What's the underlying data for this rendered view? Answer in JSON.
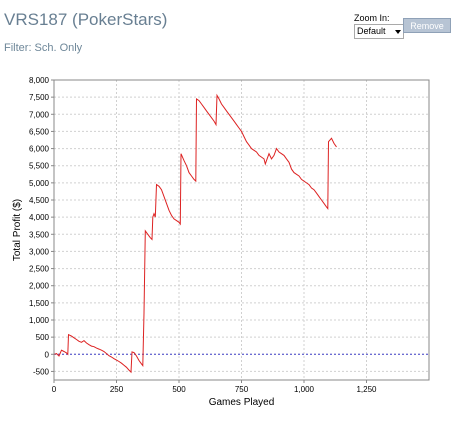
{
  "header": {
    "title": "VRS187 (PokerStars)",
    "filter_label": "Filter:",
    "filter_value": "Sch. Only"
  },
  "zoom": {
    "label": "Zoom In:",
    "selected": "Default",
    "remove_label": "Remove"
  },
  "colors": {
    "series": "#dd2222",
    "zero_line": "#4444cc",
    "grid": "#d0d0d0",
    "title": "#687f92"
  },
  "chart_data": {
    "type": "line",
    "xlabel": "Games Played",
    "ylabel": "Total Profit ($)",
    "xlim": [
      0,
      1500
    ],
    "ylim": [
      -750,
      8000
    ],
    "x_ticks": [
      0,
      250,
      500,
      750,
      1000,
      1250
    ],
    "x_tick_labels": [
      "0",
      "250",
      "500",
      "750",
      "1,000",
      "1,250"
    ],
    "y_ticks": [
      -500,
      0,
      500,
      1000,
      1500,
      2000,
      2500,
      3000,
      3500,
      4000,
      4500,
      5000,
      5500,
      6000,
      6500,
      7000,
      7500,
      8000
    ],
    "y_tick_labels": [
      "-500",
      "0",
      "500",
      "1,000",
      "1,500",
      "2,000",
      "2,500",
      "3,000",
      "3,500",
      "4,000",
      "4,500",
      "5,000",
      "5,500",
      "6,000",
      "6,500",
      "7,000",
      "7,500",
      "8,000"
    ],
    "grid": true,
    "reference_line": 0,
    "series": [
      {
        "points": [
          [
            0,
            0
          ],
          [
            10,
            20
          ],
          [
            20,
            -50
          ],
          [
            30,
            120
          ],
          [
            40,
            80
          ],
          [
            50,
            40
          ],
          [
            55,
            0
          ],
          [
            58,
            570
          ],
          [
            70,
            530
          ],
          [
            80,
            480
          ],
          [
            90,
            430
          ],
          [
            100,
            380
          ],
          [
            110,
            350
          ],
          [
            120,
            400
          ],
          [
            130,
            330
          ],
          [
            140,
            280
          ],
          [
            150,
            240
          ],
          [
            160,
            220
          ],
          [
            170,
            180
          ],
          [
            180,
            150
          ],
          [
            190,
            120
          ],
          [
            200,
            80
          ],
          [
            210,
            20
          ],
          [
            220,
            -40
          ],
          [
            230,
            -80
          ],
          [
            240,
            -130
          ],
          [
            250,
            -170
          ],
          [
            260,
            -210
          ],
          [
            270,
            -260
          ],
          [
            280,
            -320
          ],
          [
            290,
            -380
          ],
          [
            300,
            -460
          ],
          [
            308,
            -520
          ],
          [
            312,
            70
          ],
          [
            320,
            50
          ],
          [
            330,
            -50
          ],
          [
            340,
            -180
          ],
          [
            350,
            -280
          ],
          [
            355,
            -330
          ],
          [
            360,
            1200
          ],
          [
            365,
            3600
          ],
          [
            375,
            3500
          ],
          [
            385,
            3400
          ],
          [
            392,
            3350
          ],
          [
            395,
            4000
          ],
          [
            400,
            4100
          ],
          [
            405,
            4000
          ],
          [
            410,
            4950
          ],
          [
            420,
            4900
          ],
          [
            430,
            4800
          ],
          [
            440,
            4600
          ],
          [
            450,
            4400
          ],
          [
            460,
            4200
          ],
          [
            470,
            4050
          ],
          [
            480,
            3950
          ],
          [
            490,
            3900
          ],
          [
            500,
            3850
          ],
          [
            505,
            3800
          ],
          [
            508,
            5850
          ],
          [
            520,
            5650
          ],
          [
            530,
            5500
          ],
          [
            540,
            5300
          ],
          [
            550,
            5200
          ],
          [
            560,
            5100
          ],
          [
            567,
            5050
          ],
          [
            570,
            7450
          ],
          [
            580,
            7400
          ],
          [
            590,
            7300
          ],
          [
            600,
            7200
          ],
          [
            610,
            7100
          ],
          [
            620,
            7000
          ],
          [
            630,
            6900
          ],
          [
            640,
            6800
          ],
          [
            648,
            6700
          ],
          [
            652,
            7550
          ],
          [
            660,
            7450
          ],
          [
            670,
            7300
          ],
          [
            680,
            7200
          ],
          [
            690,
            7100
          ],
          [
            700,
            7000
          ],
          [
            710,
            6900
          ],
          [
            720,
            6800
          ],
          [
            730,
            6700
          ],
          [
            740,
            6600
          ],
          [
            750,
            6500
          ],
          [
            760,
            6350
          ],
          [
            770,
            6200
          ],
          [
            780,
            6100
          ],
          [
            790,
            6000
          ],
          [
            800,
            5950
          ],
          [
            810,
            5900
          ],
          [
            820,
            5800
          ],
          [
            830,
            5750
          ],
          [
            840,
            5700
          ],
          [
            845,
            5550
          ],
          [
            850,
            5650
          ],
          [
            860,
            5850
          ],
          [
            870,
            5700
          ],
          [
            880,
            5800
          ],
          [
            890,
            6000
          ],
          [
            900,
            5900
          ],
          [
            910,
            5850
          ],
          [
            920,
            5800
          ],
          [
            930,
            5700
          ],
          [
            940,
            5600
          ],
          [
            950,
            5400
          ],
          [
            960,
            5300
          ],
          [
            970,
            5250
          ],
          [
            980,
            5200
          ],
          [
            990,
            5100
          ],
          [
            1000,
            5050
          ],
          [
            1010,
            5000
          ],
          [
            1020,
            4950
          ],
          [
            1030,
            4850
          ],
          [
            1040,
            4800
          ],
          [
            1050,
            4700
          ],
          [
            1060,
            4600
          ],
          [
            1070,
            4500
          ],
          [
            1080,
            4400
          ],
          [
            1090,
            4300
          ],
          [
            1095,
            4250
          ],
          [
            1098,
            6200
          ],
          [
            1110,
            6300
          ],
          [
            1120,
            6150
          ],
          [
            1130,
            6050
          ]
        ]
      }
    ]
  }
}
